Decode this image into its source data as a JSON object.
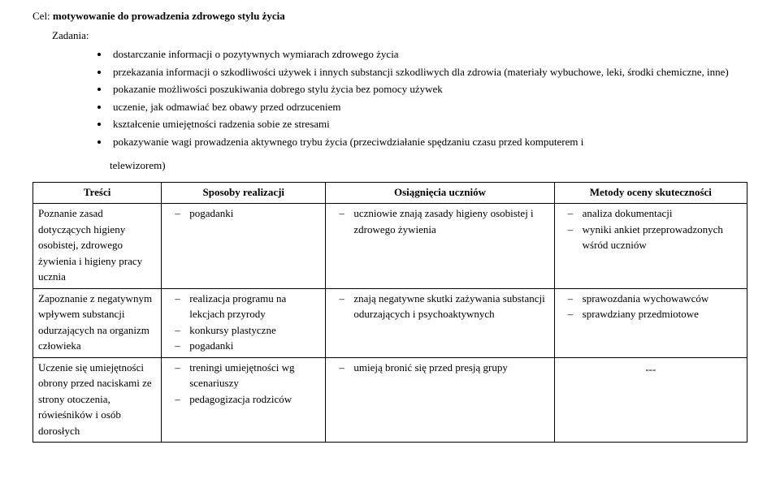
{
  "header": {
    "cel_label": "Cel:",
    "cel_text": "motywowanie do prowadzenia zdrowego stylu życia",
    "zadania_label": "Zadania:"
  },
  "bullets": {
    "b1": "dostarczanie informacji o pozytywnych wymiarach zdrowego życia",
    "b2": "przekazania informacji o szkodliwości używek i innych substancji szkodliwych dla zdrowia (materiały wybuchowe, leki, środki chemiczne, inne)",
    "b3": "pokazanie możliwości poszukiwania dobrego stylu życia bez pomocy używek",
    "b4": "uczenie, jak odmawiać bez obawy przed odrzuceniem",
    "b5": "kształcenie umiejętności radzenia sobie ze stresami",
    "b6a": "pokazywanie wagi prowadzenia aktywnego trybu życia (przeciwdziałanie spędzaniu czasu przed komputerem i",
    "b6b": "telewizorem)"
  },
  "thead": {
    "c1": "Treści",
    "c2": "Sposoby realizacji",
    "c3": "Osiągnięcia uczniów",
    "c4": "Metody oceny skuteczności"
  },
  "rows": {
    "r1": {
      "tresci": "Poznanie zasad dotyczących higieny osobistej, zdrowego żywienia i higieny pracy ucznia",
      "sposoby": {
        "s1": "pogadanki"
      },
      "osiag": {
        "o1": "uczniowie znają zasady higieny osobistej i zdrowego żywienia"
      },
      "metody": {
        "m1": "analiza dokumentacji",
        "m2": "wyniki ankiet przeprowadzonych wśród uczniów"
      }
    },
    "r2": {
      "tresci": "Zapoznanie z negatywnym wpływem substancji odurzających na organizm człowieka",
      "sposoby": {
        "s1": "realizacja programu na lekcjach przyrody",
        "s2": "konkursy plastyczne",
        "s3": "pogadanki"
      },
      "osiag": {
        "o1": "znają negatywne skutki zażywania substancji odurzających i psychoaktywnych"
      },
      "metody": {
        "m1": "sprawozdania wychowawców",
        "m2": "sprawdziany przedmiotowe"
      }
    },
    "r3": {
      "tresci": "Uczenie się umiejętności obrony przed naciskami ze strony otoczenia, rówieśników i osób dorosłych",
      "sposoby": {
        "s1": "treningi umiejętności wg scenariuszy",
        "s2": "pedagogizacja rodziców"
      },
      "osiag": {
        "o1": "umieją bronić się przed presją grupy"
      },
      "metody_text": "---"
    }
  }
}
